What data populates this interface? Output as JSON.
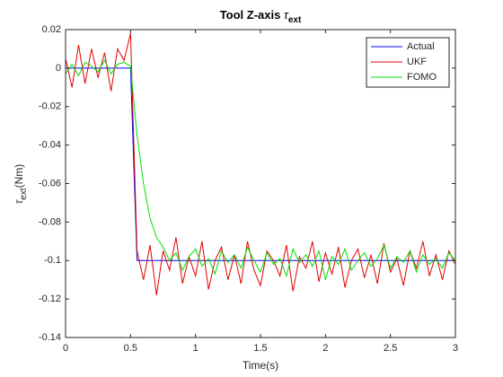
{
  "chart_data": {
    "type": "line",
    "title": "Tool Z-axis",
    "title_symbol": "τ",
    "title_subscript": "ext",
    "y_label_symbol": "τ",
    "y_label_subscript": "ext",
    "y_label_unit": "(Nm)",
    "x_label": "Time(s)",
    "x": [
      0,
      0.05,
      0.1,
      0.15,
      0.2,
      0.25,
      0.3,
      0.35,
      0.4,
      0.45,
      0.5,
      0.55,
      0.6,
      0.65,
      0.7,
      0.75,
      0.8,
      0.85,
      0.9,
      0.95,
      1,
      1.05,
      1.1,
      1.15,
      1.2,
      1.25,
      1.3,
      1.35,
      1.4,
      1.45,
      1.5,
      1.55,
      1.6,
      1.65,
      1.7,
      1.75,
      1.8,
      1.85,
      1.9,
      1.95,
      2,
      2.05,
      2.1,
      2.15,
      2.2,
      2.25,
      2.3,
      2.35,
      2.4,
      2.45,
      2.5,
      2.55,
      2.6,
      2.65,
      2.7,
      2.75,
      2.8,
      2.85,
      2.9,
      2.95,
      3
    ],
    "series": [
      {
        "name": "Actual",
        "color": "#0000ff",
        "values": [
          0,
          0,
          0,
          0,
          0,
          0,
          0,
          0,
          0,
          0,
          0,
          -0.1,
          -0.1,
          -0.1,
          -0.1,
          -0.1,
          -0.1,
          -0.1,
          -0.1,
          -0.1,
          -0.1,
          -0.1,
          -0.1,
          -0.1,
          -0.1,
          -0.1,
          -0.1,
          -0.1,
          -0.1,
          -0.1,
          -0.1,
          -0.1,
          -0.1,
          -0.1,
          -0.1,
          -0.1,
          -0.1,
          -0.1,
          -0.1,
          -0.1,
          -0.1,
          -0.1,
          -0.1,
          -0.1,
          -0.1,
          -0.1,
          -0.1,
          -0.1,
          -0.1,
          -0.1,
          -0.1,
          -0.1,
          -0.1,
          -0.1,
          -0.1,
          -0.1,
          -0.1,
          -0.1,
          -0.1,
          -0.1,
          -0.1
        ]
      },
      {
        "name": "UKF",
        "color": "#e00000",
        "values": [
          0.005,
          -0.01,
          0.012,
          -0.008,
          0.01,
          -0.005,
          0.008,
          -0.012,
          0.01,
          0.004,
          0.018,
          -0.095,
          -0.11,
          -0.092,
          -0.118,
          -0.095,
          -0.105,
          -0.088,
          -0.112,
          -0.098,
          -0.108,
          -0.09,
          -0.115,
          -0.1,
          -0.093,
          -0.11,
          -0.097,
          -0.112,
          -0.09,
          -0.105,
          -0.113,
          -0.095,
          -0.1,
          -0.108,
          -0.092,
          -0.116,
          -0.098,
          -0.104,
          -0.09,
          -0.111,
          -0.096,
          -0.107,
          -0.093,
          -0.114,
          -0.1,
          -0.094,
          -0.109,
          -0.097,
          -0.112,
          -0.091,
          -0.106,
          -0.099,
          -0.113,
          -0.095,
          -0.104,
          -0.09,
          -0.108,
          -0.097,
          -0.11,
          -0.095,
          -0.102
        ]
      },
      {
        "name": "FOMO",
        "color": "#00e000",
        "values": [
          -0.003,
          0.002,
          -0.004,
          0.003,
          0.001,
          -0.002,
          0.004,
          -0.003,
          0.002,
          0.003,
          0.001,
          -0.035,
          -0.06,
          -0.078,
          -0.088,
          -0.093,
          -0.1,
          -0.096,
          -0.105,
          -0.098,
          -0.094,
          -0.103,
          -0.099,
          -0.107,
          -0.095,
          -0.101,
          -0.097,
          -0.104,
          -0.093,
          -0.1,
          -0.106,
          -0.096,
          -0.102,
          -0.099,
          -0.108,
          -0.094,
          -0.101,
          -0.097,
          -0.103,
          -0.095,
          -0.11,
          -0.098,
          -0.102,
          -0.094,
          -0.105,
          -0.1,
          -0.096,
          -0.103,
          -0.099,
          -0.092,
          -0.104,
          -0.098,
          -0.101,
          -0.095,
          -0.106,
          -0.097,
          -0.102,
          -0.099,
          -0.104,
          -0.096,
          -0.1
        ]
      }
    ],
    "xlim": [
      0,
      3
    ],
    "xticks": [
      0,
      0.5,
      1,
      1.5,
      2,
      2.5,
      3
    ],
    "ylim": [
      -0.14,
      0.02
    ],
    "yticks": [
      -0.14,
      -0.12,
      -0.1,
      -0.08,
      -0.06,
      -0.04,
      -0.02,
      0,
      0.02
    ],
    "grid": false,
    "legend_position": "northeast"
  }
}
